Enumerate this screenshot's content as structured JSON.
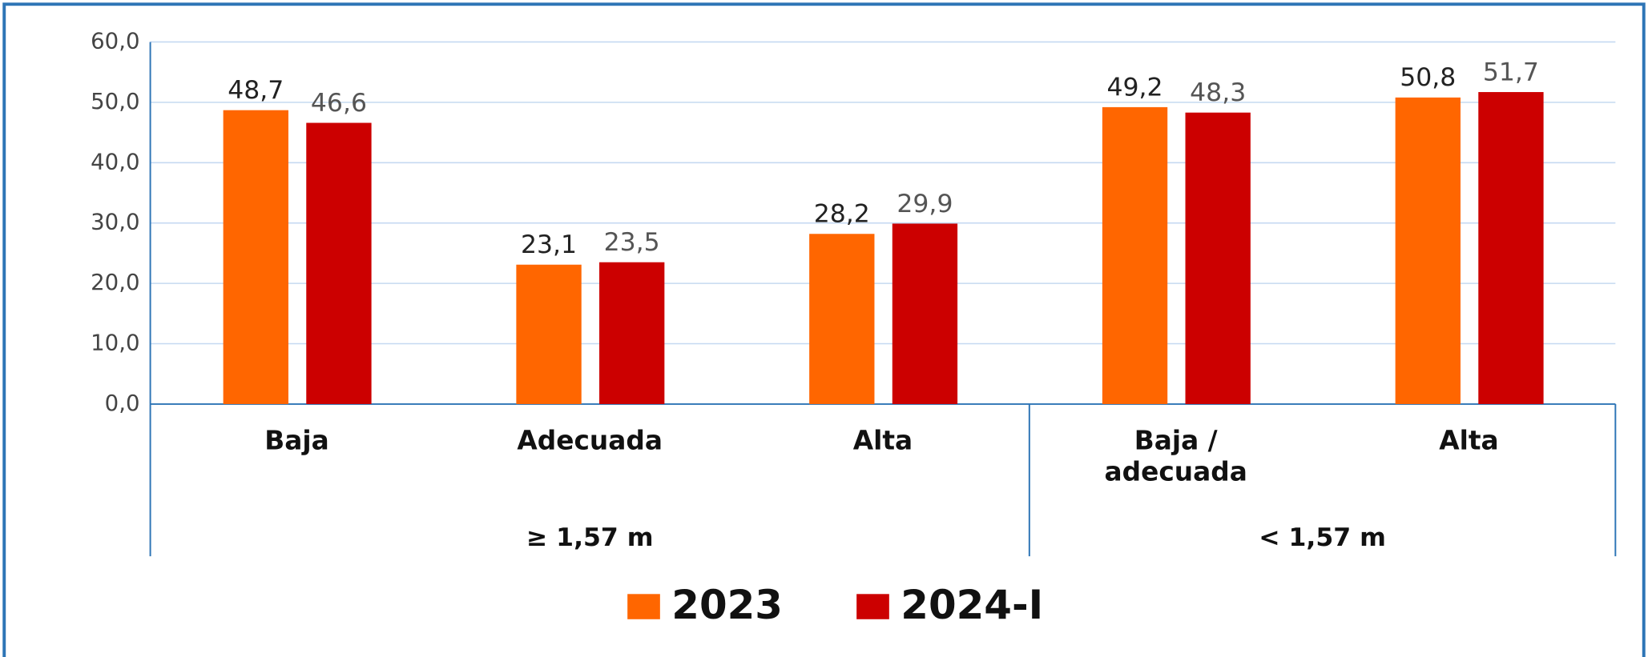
{
  "chart_data": {
    "type": "bar",
    "categories": [
      "Baja",
      "Adecuada",
      "Alta",
      "Baja / adecuada",
      "Alta"
    ],
    "groups": [
      {
        "label": "≥ 1,57 m",
        "count": 3
      },
      {
        "label": "< 1,57 m",
        "count": 2
      }
    ],
    "series": [
      {
        "name": "2023",
        "color": "#ff6600",
        "values": [
          48.7,
          23.1,
          28.2,
          49.2,
          50.8
        ],
        "value_labels": [
          "48,7",
          "23,1",
          "28,2",
          "49,2",
          "50,8"
        ]
      },
      {
        "name": "2024-I",
        "color": "#cc0000",
        "values": [
          46.6,
          23.5,
          29.9,
          48.3,
          51.7
        ],
        "value_labels": [
          "46,6",
          "23,5",
          "29,9",
          "48,3",
          "51,7"
        ]
      }
    ],
    "ylim": [
      0,
      60
    ],
    "yticks": [
      {
        "value": 0,
        "label": "0,0"
      },
      {
        "value": 10,
        "label": "10,0"
      },
      {
        "value": 20,
        "label": "20,0"
      },
      {
        "value": 30,
        "label": "30,0"
      },
      {
        "value": 40,
        "label": "40,0"
      },
      {
        "value": 50,
        "label": "50,0"
      },
      {
        "value": 60,
        "label": "60,0"
      }
    ],
    "grid": true,
    "legend": "bottom"
  }
}
